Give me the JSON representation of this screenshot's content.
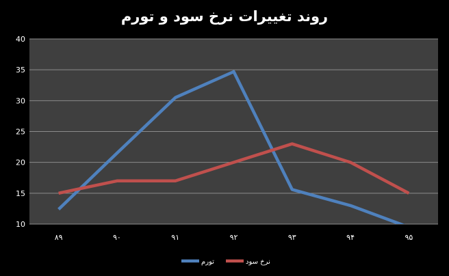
{
  "chart_data": {
    "type": "line",
    "title": "روند تغییرات نرخ سود و تورم",
    "categories": [
      "۸۹",
      "۹۰",
      "۹۱",
      "۹۲",
      "۹۳",
      "۹۴",
      "۹۵"
    ],
    "ylim": [
      10,
      40
    ],
    "yticks": [
      10,
      15,
      20,
      25,
      30,
      35,
      40
    ],
    "grid": true,
    "legend_position": "bottom",
    "series": [
      {
        "name": "تورم",
        "color": "#4f81bd",
        "values": [
          12.4,
          21.5,
          30.5,
          34.7,
          15.6,
          13.0,
          9.5
        ]
      },
      {
        "name": "نرخ سود",
        "color": "#c0504d",
        "values": [
          15.0,
          17.0,
          17.0,
          20.0,
          23.0,
          20.0,
          15.0
        ]
      }
    ],
    "plot_background": "#3f3f3f",
    "gridline_color": "#8c8c8c"
  }
}
